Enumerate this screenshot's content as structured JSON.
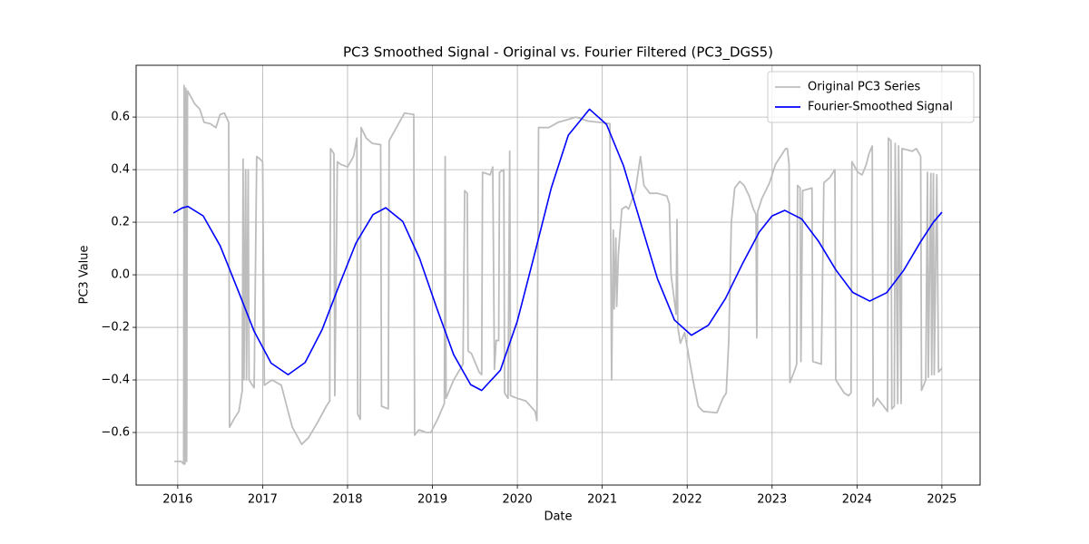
{
  "chart_data": {
    "type": "line",
    "title": "PC3 Smoothed Signal - Original vs. Fourier Filtered (PC3_DGS5)",
    "xlabel": "Date",
    "ylabel": "PC3 Value",
    "xlim": [
      2015.51,
      2025.45
    ],
    "ylim": [
      -0.8,
      0.797
    ],
    "xticks": [
      2016,
      2017,
      2018,
      2019,
      2020,
      2021,
      2022,
      2023,
      2024,
      2025
    ],
    "yticks": [
      {
        "value": -0.6,
        "label": "−0.6"
      },
      {
        "value": -0.4,
        "label": "−0.4"
      },
      {
        "value": -0.2,
        "label": "−0.2"
      },
      {
        "value": 0,
        "label": "0.0"
      },
      0.2,
      0.4,
      0.6
    ],
    "grid": true,
    "legend": "upper right",
    "series": [
      {
        "name": "Original PC3 Series",
        "color": "#bdbdbd",
        "x": [
          2015.96,
          2016.04,
          2016.07,
          2016.075,
          2016.085,
          2016.095,
          2016.105,
          2016.115,
          2016.15,
          2016.2,
          2016.26,
          2016.31,
          2016.38,
          2016.45,
          2016.5,
          2016.55,
          2016.6,
          2016.61,
          2016.66,
          2016.72,
          2016.76,
          2016.77,
          2016.78,
          2016.8,
          2016.81,
          2016.83,
          2016.84,
          2016.9,
          2016.93,
          2016.97,
          2017.0,
          2017.02,
          2017.11,
          2017.22,
          2017.3,
          2017.35,
          2017.46,
          2017.54,
          2017.65,
          2017.75,
          2017.79,
          2017.8,
          2017.84,
          2017.85,
          2017.88,
          2017.92,
          2018.0,
          2018.07,
          2018.11,
          2018.12,
          2018.15,
          2018.16,
          2018.22,
          2018.29,
          2018.39,
          2018.4,
          2018.48,
          2018.49,
          2018.61,
          2018.67,
          2018.78,
          2018.79,
          2018.84,
          2018.93,
          2018.98,
          2019.06,
          2019.14,
          2019.15,
          2019.16,
          2019.25,
          2019.36,
          2019.38,
          2019.41,
          2019.42,
          2019.46,
          2019.55,
          2019.58,
          2019.59,
          2019.68,
          2019.71,
          2019.73,
          2019.75,
          2019.78,
          2019.79,
          2019.84,
          2019.85,
          2019.89,
          2019.91,
          2019.92,
          2020.0,
          2020.1,
          2020.21,
          2020.23,
          2020.25,
          2020.37,
          2020.48,
          2020.59,
          2020.69,
          2020.83,
          2020.96,
          2021.09,
          2021.11,
          2021.13,
          2021.14,
          2021.16,
          2021.17,
          2021.19,
          2021.23,
          2021.28,
          2021.31,
          2021.39,
          2021.45,
          2021.49,
          2021.56,
          2021.65,
          2021.76,
          2021.79,
          2021.81,
          2021.87,
          2021.88,
          2021.89,
          2021.92,
          2021.97,
          2022.03,
          2022.08,
          2022.13,
          2022.19,
          2022.35,
          2022.42,
          2022.46,
          2022.49,
          2022.52,
          2022.56,
          2022.62,
          2022.67,
          2022.73,
          2022.78,
          2022.81,
          2022.82,
          2022.83,
          2022.88,
          2022.97,
          2023.04,
          2023.12,
          2023.16,
          2023.18,
          2023.2,
          2023.21,
          2023.27,
          2023.29,
          2023.3,
          2023.33,
          2023.34,
          2023.36,
          2023.47,
          2023.48,
          2023.58,
          2023.61,
          2023.68,
          2023.74,
          2023.75,
          2023.85,
          2023.9,
          2023.93,
          2023.94,
          2024.01,
          2024.06,
          2024.11,
          2024.14,
          2024.18,
          2024.19,
          2024.24,
          2024.29,
          2024.36,
          2024.37,
          2024.4,
          2024.41,
          2024.44,
          2024.45,
          2024.48,
          2024.49,
          2024.52,
          2024.53,
          2024.65,
          2024.7,
          2024.75,
          2024.76,
          2024.81,
          2024.83,
          2024.84,
          2024.87,
          2024.88,
          2024.9,
          2024.91,
          2024.94,
          2024.96,
          2025.0
        ],
        "values": [
          -0.71,
          -0.71,
          -0.72,
          0.72,
          -0.72,
          0.71,
          -0.71,
          0.7,
          0.68,
          0.65,
          0.63,
          0.58,
          0.575,
          0.56,
          0.61,
          0.615,
          0.58,
          -0.58,
          -0.55,
          -0.52,
          -0.44,
          0.44,
          -0.4,
          0.4,
          -0.4,
          0.4,
          -0.4,
          -0.43,
          0.45,
          0.44,
          0.43,
          -0.42,
          -0.4,
          -0.42,
          -0.52,
          -0.58,
          -0.645,
          -0.62,
          -0.56,
          -0.5,
          -0.48,
          0.48,
          0.46,
          -0.46,
          0.43,
          0.42,
          0.41,
          0.45,
          0.52,
          -0.53,
          -0.55,
          0.56,
          0.52,
          0.5,
          0.495,
          -0.5,
          -0.51,
          0.51,
          0.58,
          0.615,
          0.61,
          -0.61,
          -0.59,
          -0.6,
          -0.6,
          -0.55,
          -0.49,
          0.45,
          -0.47,
          -0.4,
          -0.34,
          0.32,
          0.31,
          -0.29,
          -0.3,
          -0.37,
          -0.38,
          0.39,
          0.38,
          0.41,
          -0.36,
          -0.25,
          -0.25,
          0.39,
          0.4,
          -0.45,
          -0.47,
          0.47,
          -0.46,
          -0.47,
          -0.48,
          -0.52,
          -0.555,
          0.56,
          0.56,
          0.58,
          0.59,
          0.6,
          0.585,
          0.58,
          0.575,
          -0.4,
          0.17,
          -0.13,
          0.14,
          -0.12,
          0.08,
          0.25,
          0.26,
          0.25,
          0.32,
          0.45,
          0.34,
          0.31,
          0.31,
          0.3,
          0.27,
          0.0,
          -0.15,
          0.21,
          -0.2,
          -0.26,
          -0.22,
          -0.33,
          -0.42,
          -0.5,
          -0.52,
          -0.525,
          -0.47,
          -0.45,
          -0.25,
          0.2,
          0.33,
          0.355,
          0.34,
          0.3,
          0.25,
          0.23,
          -0.24,
          0.24,
          0.29,
          0.35,
          0.42,
          0.46,
          0.48,
          0.48,
          0.42,
          -0.41,
          -0.36,
          -0.34,
          0.34,
          0.33,
          -0.33,
          0.32,
          0.33,
          -0.33,
          -0.34,
          0.35,
          0.37,
          0.4,
          -0.4,
          -0.45,
          -0.46,
          -0.45,
          0.43,
          0.39,
          0.38,
          0.42,
          0.46,
          0.49,
          -0.5,
          -0.47,
          -0.49,
          -0.52,
          0.52,
          0.51,
          -0.51,
          -0.5,
          0.5,
          -0.49,
          0.49,
          -0.49,
          0.48,
          0.47,
          0.48,
          0.45,
          -0.44,
          -0.4,
          0.39,
          -0.39,
          0.385,
          -0.38,
          0.385,
          -0.38,
          0.38,
          -0.37,
          -0.355
        ]
      },
      {
        "name": "Fourier-Smoothed Signal",
        "color": "#0000ff",
        "x": [
          2015.95,
          2016.05,
          2016.12,
          2016.3,
          2016.5,
          2016.7,
          2016.9,
          2017.1,
          2017.3,
          2017.5,
          2017.7,
          2017.9,
          2018.1,
          2018.3,
          2018.45,
          2018.65,
          2018.85,
          2019.05,
          2019.25,
          2019.45,
          2019.58,
          2019.8,
          2020.0,
          2020.2,
          2020.4,
          2020.6,
          2020.85,
          2021.05,
          2021.25,
          2021.45,
          2021.65,
          2021.85,
          2022.05,
          2022.25,
          2022.45,
          2022.65,
          2022.85,
          2023.0,
          2023.15,
          2023.35,
          2023.55,
          2023.75,
          2023.95,
          2024.15,
          2024.35,
          2024.55,
          2024.75,
          2024.9,
          2025.0
        ],
        "values": [
          0.235,
          0.254,
          0.26,
          0.224,
          0.11,
          -0.051,
          -0.215,
          -0.336,
          -0.38,
          -0.334,
          -0.209,
          -0.041,
          0.121,
          0.229,
          0.255,
          0.203,
          0.061,
          -0.126,
          -0.304,
          -0.418,
          -0.44,
          -0.363,
          -0.176,
          0.075,
          0.331,
          0.531,
          0.63,
          0.572,
          0.415,
          0.2,
          -0.015,
          -0.172,
          -0.23,
          -0.192,
          -0.091,
          0.041,
          0.163,
          0.224,
          0.245,
          0.212,
          0.126,
          0.019,
          -0.067,
          -0.1,
          -0.068,
          0.017,
          0.126,
          0.2,
          0.238
        ]
      }
    ]
  }
}
